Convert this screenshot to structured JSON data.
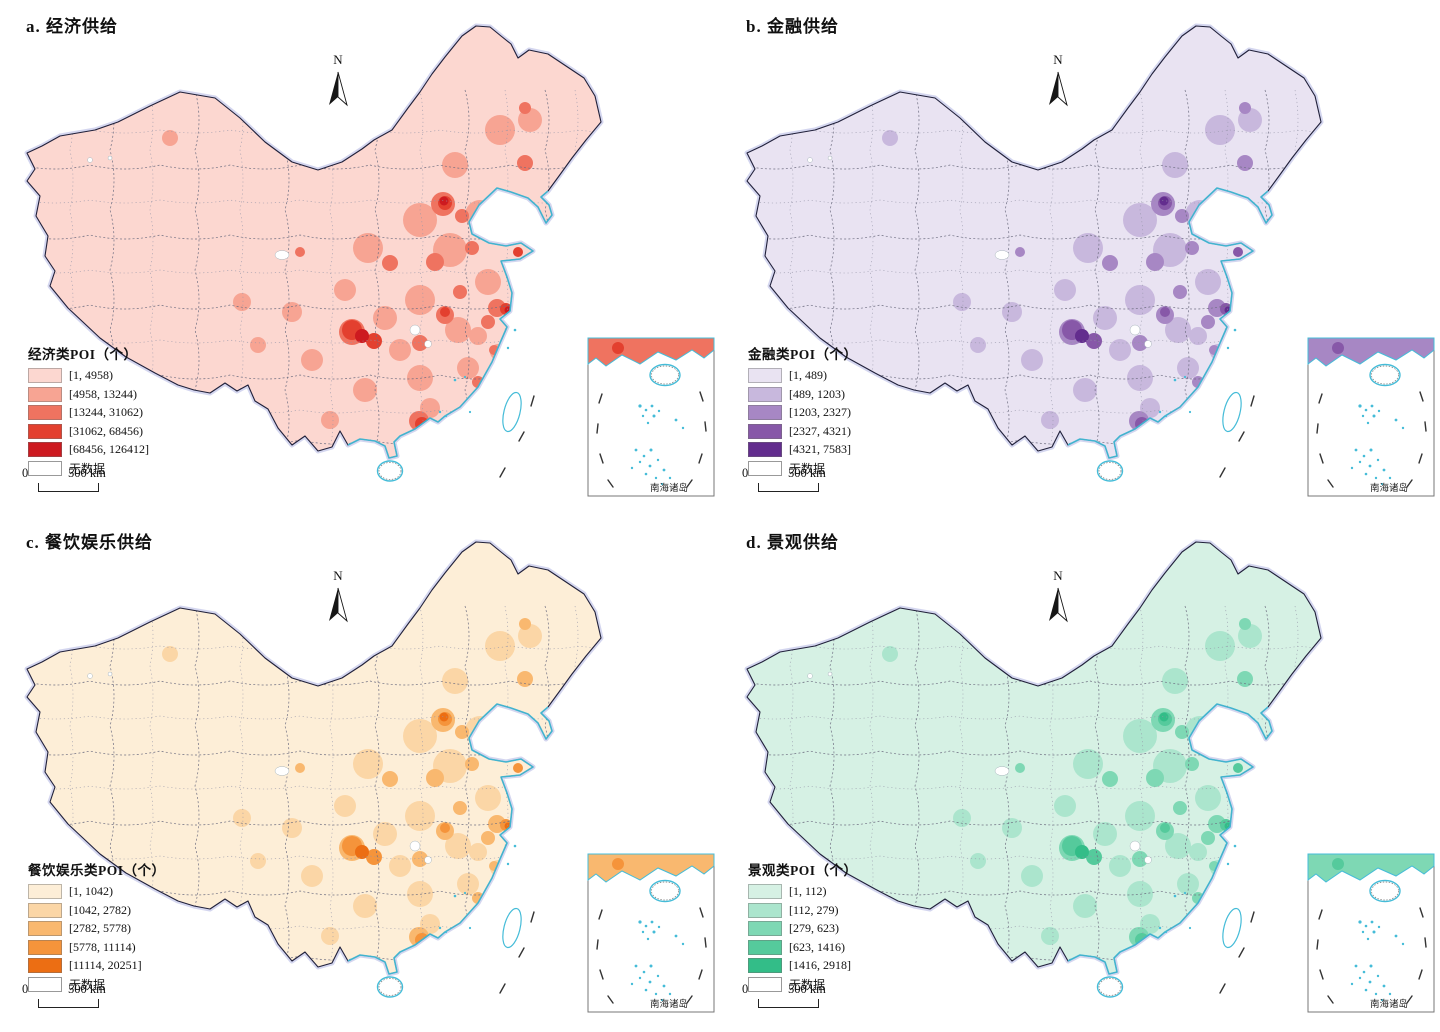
{
  "shared": {
    "north_label": "N",
    "no_data_label": "无数据",
    "inset_label": "南海诸岛",
    "scale_zero": "0",
    "scale_distance": "500 km"
  },
  "map_colors": {
    "sea": "#ffffff",
    "coastline": "#43bad6",
    "national_border": "#20203a",
    "border_halo": "#b7bae4",
    "no_data_fill": "#ffffff",
    "boundary_dots": "#9595a8"
  },
  "panels": [
    {
      "id": "a",
      "title": "a. 经济供给",
      "legend_title": "经济类POI（个）",
      "classes": [
        {
          "label": "[1, 4958)",
          "color": "#fcd7d0"
        },
        {
          "label": "[4958, 13244)",
          "color": "#f7a493"
        },
        {
          "label": "[13244, 31062)",
          "color": "#ef7360"
        },
        {
          "label": "[31062, 68456)",
          "color": "#e3402f"
        },
        {
          "label": "[68456, 126412]",
          "color": "#cd1a20"
        }
      ]
    },
    {
      "id": "b",
      "title": "b. 金融供给",
      "legend_title": "金融类POI（个）",
      "classes": [
        {
          "label": "[1, 489)",
          "color": "#e9e3f2"
        },
        {
          "label": "[489, 1203)",
          "color": "#c8b8dd"
        },
        {
          "label": "[1203, 2327)",
          "color": "#a787c4"
        },
        {
          "label": "[2327, 4321)",
          "color": "#8758a8"
        },
        {
          "label": "[4321, 7583]",
          "color": "#632d8e"
        }
      ]
    },
    {
      "id": "c",
      "title": "c. 餐饮娱乐供给",
      "legend_title": "餐饮娱乐类POI（个）",
      "classes": [
        {
          "label": "[1, 1042)",
          "color": "#fdeed7"
        },
        {
          "label": "[1042, 2782)",
          "color": "#fbd6a6"
        },
        {
          "label": "[2782, 5778)",
          "color": "#f9b86f"
        },
        {
          "label": "[5778, 11114)",
          "color": "#f5943b"
        },
        {
          "label": "[11114, 20251]",
          "color": "#ec6e13"
        }
      ]
    },
    {
      "id": "d",
      "title": "d. 景观供给",
      "legend_title": "景观类POI（个）",
      "classes": [
        {
          "label": "[1, 112)",
          "color": "#d6f1e4"
        },
        {
          "label": "[112, 279)",
          "color": "#abe5cd"
        },
        {
          "label": "[279, 623)",
          "color": "#7ed8b4"
        },
        {
          "label": "[623, 1416)",
          "color": "#55ca9c"
        },
        {
          "label": "[1416, 2918]",
          "color": "#33bd88"
        }
      ]
    }
  ]
}
